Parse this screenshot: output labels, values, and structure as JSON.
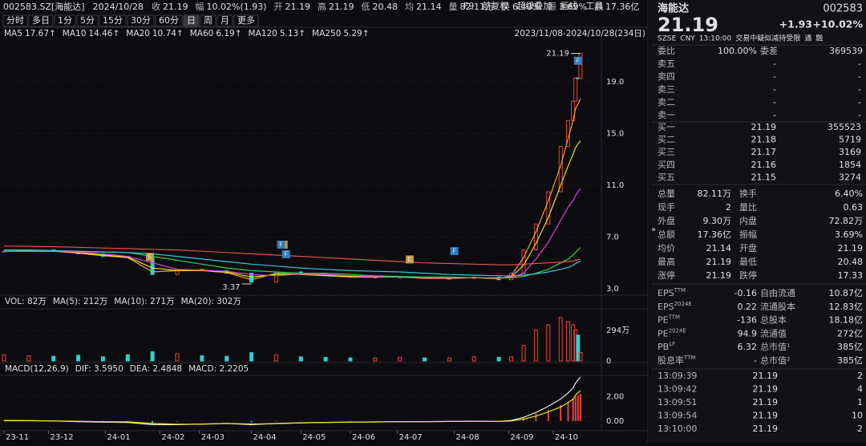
{
  "quote_bar": {
    "code": "002583.SZ[海能达]",
    "date": "2024/10/28",
    "items": [
      {
        "label": "收",
        "value": "21.19",
        "color": "#f0413a"
      },
      {
        "label": "幅",
        "value": "10.02%(1.93)",
        "color": "#f0413a"
      },
      {
        "label": "开",
        "value": "21.19",
        "color": "#f0413a"
      },
      {
        "label": "高",
        "value": "21.19",
        "color": "#f0413a"
      },
      {
        "label": "低",
        "value": "20.48",
        "color": "#f0413a"
      },
      {
        "label": "均",
        "value": "21.14",
        "color": "#f0413a"
      },
      {
        "label": "量",
        "value": "82.11万",
        "color": "#e0e0e0"
      },
      {
        "label": "换",
        "value": "6.40%",
        "color": "#e0e0e0"
      },
      {
        "label": "振",
        "value": "3.69%",
        "color": "#e0e0e0"
      },
      {
        "label": "额",
        "value": "17.36亿",
        "color": "#e0e0e0"
      }
    ]
  },
  "toolbar": {
    "periods": [
      "分时",
      "多日",
      "1分",
      "5分",
      "15分",
      "30分",
      "60分",
      "日",
      "周",
      "月",
      "更多"
    ],
    "active": "日",
    "tools": [
      "F9",
      "前复权",
      "超级叠加",
      "画线",
      "工具"
    ]
  },
  "chart_data": [
    {
      "type": "candlestick",
      "range_label": "2023/11/08-2024/10/28(234日)",
      "x": [
        0,
        10,
        20,
        30,
        40,
        50,
        60,
        70,
        80,
        90,
        100,
        110,
        120,
        130,
        140,
        150,
        160,
        170,
        180,
        190,
        200,
        205,
        210,
        215,
        220,
        225,
        228,
        230,
        231,
        232,
        233
      ],
      "close": [
        5.9,
        6.0,
        5.9,
        5.7,
        5.5,
        5.4,
        4.1,
        4.5,
        4.4,
        4.2,
        3.5,
        4.3,
        4.1,
        4.0,
        3.9,
        3.9,
        3.9,
        3.8,
        3.8,
        3.9,
        3.7,
        4.2,
        6.0,
        8.0,
        10.5,
        14.0,
        16.0,
        17.5,
        19.3,
        19.26,
        21.19
      ],
      "up_color": "#f0413a",
      "down_color": "#2fd0d0",
      "xlim": [
        0,
        234
      ],
      "xticks": [
        {
          "value": 0,
          "label": "23-11"
        },
        {
          "value": 18,
          "label": "23-12"
        },
        {
          "value": 41,
          "label": "24-01"
        },
        {
          "value": 63,
          "label": "24-02"
        },
        {
          "value": 79,
          "label": "24-03"
        },
        {
          "value": 100,
          "label": "24-04"
        },
        {
          "value": 120,
          "label": "24-05"
        },
        {
          "value": 140,
          "label": "24-06"
        },
        {
          "value": 159,
          "label": "24-07"
        },
        {
          "value": 182,
          "label": "24-08"
        },
        {
          "value": 204,
          "label": "24-09"
        },
        {
          "value": 222,
          "label": "24-10"
        }
      ],
      "ylim": [
        2.5,
        22.1
      ],
      "yticks": [
        {
          "value": 3,
          "label": "3.0"
        },
        {
          "value": 7,
          "label": "7.0"
        },
        {
          "value": 11,
          "label": "11.0"
        },
        {
          "value": 15,
          "label": "15.0"
        },
        {
          "value": 19,
          "label": "19.0"
        }
      ],
      "grid": true,
      "series": [
        {
          "name": "MA5",
          "legend_value": "17.67↑",
          "color": "#f0a030",
          "values": [
            5.9,
            5.95,
            5.9,
            5.75,
            5.55,
            5.4,
            4.3,
            4.4,
            4.4,
            4.25,
            3.7,
            4.2,
            4.1,
            4.0,
            3.9,
            3.9,
            3.9,
            3.8,
            3.8,
            3.85,
            3.75,
            4.0,
            5.4,
            7.4,
            9.8,
            12.5,
            14.6,
            16.0,
            16.9,
            17.3,
            17.67
          ]
        },
        {
          "name": "MA10",
          "legend_value": "14.46↑",
          "color": "#e8e020",
          "values": [
            5.9,
            5.9,
            5.9,
            5.8,
            5.6,
            5.45,
            4.6,
            4.4,
            4.45,
            4.3,
            3.9,
            4.1,
            4.15,
            4.05,
            3.95,
            3.9,
            3.9,
            3.85,
            3.8,
            3.85,
            3.8,
            3.9,
            4.8,
            6.5,
            8.5,
            11.0,
            12.5,
            13.4,
            13.9,
            14.2,
            14.46
          ]
        },
        {
          "name": "MA20",
          "legend_value": "10.74↑",
          "color": "#e040d0",
          "values": [
            5.9,
            5.9,
            5.9,
            5.85,
            5.7,
            5.5,
            5.0,
            4.5,
            4.45,
            4.35,
            4.1,
            4.0,
            4.15,
            4.1,
            4.0,
            3.95,
            3.9,
            3.85,
            3.85,
            3.85,
            3.8,
            3.85,
            4.2,
            5.3,
            6.6,
            8.3,
            9.3,
            9.8,
            10.2,
            10.5,
            10.74
          ]
        },
        {
          "name": "MA60",
          "legend_value": "6.19↑",
          "color": "#30d050",
          "values": [
            5.9,
            5.9,
            5.9,
            5.9,
            5.85,
            5.8,
            5.5,
            5.2,
            4.9,
            4.6,
            4.4,
            4.3,
            4.2,
            4.2,
            4.1,
            4.0,
            3.95,
            3.9,
            3.9,
            3.85,
            3.85,
            3.85,
            3.95,
            4.2,
            4.5,
            5.0,
            5.3,
            5.6,
            5.8,
            6.0,
            6.19
          ]
        },
        {
          "name": "MA120",
          "legend_value": "5.13↑",
          "color": "#40c0e0",
          "values": [
            6.0,
            6.0,
            5.95,
            5.9,
            5.85,
            5.8,
            5.7,
            5.5,
            5.3,
            5.1,
            4.9,
            4.75,
            4.6,
            4.5,
            4.4,
            4.35,
            4.3,
            4.2,
            4.1,
            4.05,
            4.0,
            4.0,
            4.05,
            4.15,
            4.3,
            4.5,
            4.65,
            4.8,
            4.95,
            5.05,
            5.13
          ]
        },
        {
          "name": "MA250",
          "legend_value": "5.29↑",
          "color": "#e05050",
          "values": [
            6.3,
            6.28,
            6.25,
            6.2,
            6.15,
            6.1,
            6.05,
            6.0,
            5.9,
            5.8,
            5.7,
            5.6,
            5.5,
            5.4,
            5.3,
            5.2,
            5.1,
            5.0,
            4.95,
            4.9,
            4.85,
            4.85,
            4.9,
            4.95,
            5.0,
            5.05,
            5.1,
            5.15,
            5.2,
            5.25,
            5.29
          ]
        }
      ],
      "annotations": [
        {
          "x": 233,
          "value": 21.19
        },
        {
          "x": 100,
          "value": 3.37
        }
      ],
      "events": [
        {
          "label": "E",
          "x": 59,
          "color": "#c89a3a"
        },
        {
          "label": "E",
          "x": 113,
          "color": "#c89a3a"
        },
        {
          "label": "F",
          "x": 114,
          "color": "#2f7fc1"
        },
        {
          "label": "F",
          "x": 112,
          "color": "#2f7fc1"
        },
        {
          "label": "E",
          "x": 164,
          "color": "#c89a3a"
        },
        {
          "label": "F",
          "x": 182,
          "color": "#2f7fc1"
        },
        {
          "label": "F",
          "x": 232,
          "color": "#2f7fc1"
        }
      ]
    },
    {
      "type": "bar",
      "legend": [
        {
          "text": "VOL: 82万",
          "color": "#e0e0e0"
        },
        {
          "text": "MA(5): 212万",
          "color": "#e0e0e0"
        },
        {
          "text": "MA(10): 271万",
          "color": "#e8e020"
        },
        {
          "text": "MA(20): 302万",
          "color": "#e040d0"
        }
      ],
      "x": [
        0,
        10,
        20,
        30,
        40,
        50,
        60,
        70,
        80,
        90,
        100,
        110,
        120,
        130,
        140,
        150,
        160,
        170,
        180,
        190,
        200,
        205,
        210,
        215,
        220,
        225,
        228,
        230,
        231,
        232,
        233
      ],
      "values": [
        60,
        50,
        45,
        55,
        40,
        60,
        90,
        70,
        50,
        45,
        80,
        60,
        40,
        35,
        30,
        30,
        35,
        30,
        30,
        40,
        35,
        40,
        150,
        300,
        350,
        420,
        380,
        350,
        300,
        250,
        82
      ],
      "xlim": [
        0,
        234
      ],
      "ylim": [
        0,
        480
      ],
      "yticks": [
        0,
        {
          "value": 294,
          "label": "294万"
        }
      ]
    },
    {
      "type": "bar",
      "legend": [
        {
          "text": "MACD(12,26,9)",
          "color": "#e0e0e0"
        },
        {
          "text": "DIF: 3.5950",
          "color": "#e0e0e0"
        },
        {
          "text": "DEA: 2.4848",
          "color": "#e8e020"
        },
        {
          "text": "MACD: 2.2205",
          "color": "#e040d0"
        }
      ],
      "x": [
        0,
        10,
        20,
        30,
        40,
        50,
        60,
        70,
        80,
        90,
        100,
        110,
        120,
        130,
        140,
        150,
        160,
        170,
        180,
        190,
        200,
        205,
        210,
        215,
        220,
        225,
        228,
        230,
        231,
        232,
        233
      ],
      "values": [
        0.05,
        0.02,
        -0.02,
        -0.05,
        -0.08,
        -0.1,
        -0.2,
        -0.05,
        0.02,
        0,
        -0.1,
        0.05,
        0.02,
        0,
        -0.02,
        0,
        0,
        -0.01,
        0,
        0.02,
        0,
        0.08,
        0.3,
        0.6,
        0.9,
        1.3,
        1.6,
        1.8,
        2.0,
        2.1,
        2.2205
      ],
      "series": [
        {
          "color": "#e8e8e8",
          "values": [
            0.05,
            0.03,
            0,
            -0.05,
            -0.1,
            -0.12,
            -0.3,
            -0.3,
            -0.25,
            -0.2,
            -0.3,
            -0.2,
            -0.15,
            -0.12,
            -0.1,
            -0.08,
            -0.06,
            -0.05,
            -0.04,
            -0.02,
            -0.03,
            0.05,
            0.3,
            0.7,
            1.2,
            1.8,
            2.3,
            2.7,
            3.1,
            3.35,
            3.595
          ]
        },
        {
          "color": "#e8e020",
          "values": [
            0.02,
            0.02,
            0.01,
            -0.02,
            -0.06,
            -0.07,
            -0.2,
            -0.27,
            -0.26,
            -0.2,
            -0.25,
            -0.22,
            -0.16,
            -0.12,
            -0.09,
            -0.08,
            -0.06,
            -0.05,
            -0.04,
            -0.03,
            -0.03,
            0.0,
            0.15,
            0.4,
            0.75,
            1.15,
            1.5,
            1.8,
            2.1,
            2.3,
            2.4848
          ]
        }
      ],
      "xlim": [
        0,
        234
      ],
      "ylim": [
        -0.8,
        3.6
      ],
      "yticks": [
        {
          "value": 0,
          "label": "0.00"
        },
        {
          "value": 2,
          "label": "2.00"
        }
      ]
    }
  ],
  "quote_panel": {
    "name": "海能达",
    "code": "002583",
    "price": "21.19",
    "change": "+1.93",
    "change_pct": "+10.02%",
    "info": [
      "SZSE",
      "CNY",
      "13:10:00",
      "交易中疑似减持受限",
      "通",
      "融"
    ],
    "order_ratio": {
      "label": "委比",
      "value": "100.00%",
      "label2": "委差",
      "value2": "369539"
    },
    "asks": [
      {
        "label": "卖五",
        "price": "-",
        "volume": "-"
      },
      {
        "label": "卖四",
        "price": "-",
        "volume": "-"
      },
      {
        "label": "卖三",
        "price": "-",
        "volume": "-"
      },
      {
        "label": "卖二",
        "price": "-",
        "volume": "-"
      },
      {
        "label": "卖一",
        "price": "-",
        "volume": "-"
      }
    ],
    "bids": [
      {
        "label": "买一",
        "price": "21.19",
        "volume": "355523"
      },
      {
        "label": "买二",
        "price": "21.18",
        "volume": "5719"
      },
      {
        "label": "买三",
        "price": "21.17",
        "volume": "3169"
      },
      {
        "label": "买四",
        "price": "21.16",
        "volume": "1854"
      },
      {
        "label": "买五",
        "price": "21.15",
        "volume": "3274"
      }
    ],
    "stats": [
      [
        {
          "label": "总量",
          "value": "82.11万"
        },
        {
          "label": "换手",
          "value": "6.40%"
        }
      ],
      [
        {
          "label": "现手",
          "value": "2"
        },
        {
          "label": "量比",
          "value": "0.63"
        }
      ],
      [
        {
          "label": "外盘",
          "value": "9.30万",
          "color": "#f0413a"
        },
        {
          "label": "内盘",
          "value": "72.82万",
          "color": "#2ec24f"
        }
      ],
      [
        {
          "label": "总额",
          "value": "17.36亿"
        },
        {
          "label": "振幅",
          "value": "3.69%"
        }
      ],
      [
        {
          "label": "均价",
          "value": "21.14",
          "color": "#f0413a"
        },
        {
          "label": "开盘",
          "value": "21.19",
          "color": "#f0413a"
        }
      ],
      [
        {
          "label": "最高",
          "value": "21.19",
          "color": "#f0413a"
        },
        {
          "label": "最低",
          "value": "20.48",
          "color": "#f0413a"
        }
      ],
      [
        {
          "label": "涨停",
          "value": "21.19",
          "color": "#f0413a"
        },
        {
          "label": "跌停",
          "value": "17.33",
          "color": "#2ec24f"
        }
      ]
    ],
    "financials": [
      {
        "label": "EPS",
        "sup": "TTM",
        "value": "-0.16",
        "label2": "自由流通",
        "value2": "10.87亿"
      },
      {
        "label": "EPS",
        "sup": "2024E",
        "value": "0.22",
        "label2": "流通股本",
        "value2": "12.83亿"
      },
      {
        "label": "PE",
        "sup": "TTM",
        "value": "-136",
        "label2": "总股本",
        "value2": "18.18亿"
      },
      {
        "label": "PE",
        "sup": "2024E",
        "value": "94.9",
        "label2": "流通值",
        "value2": "272亿"
      },
      {
        "label": "PB",
        "sup": "LF",
        "value": "6.32",
        "label2": "总市值¹",
        "value2": "385亿"
      },
      {
        "label": "股息率",
        "sup": "TTM",
        "value": "-",
        "label2": "总市值²",
        "value2": "385亿"
      }
    ],
    "trades": [
      {
        "time": "13:09:39",
        "price": "21.19",
        "volume": "2"
      },
      {
        "time": "13:09:42",
        "price": "21.19",
        "volume": "4"
      },
      {
        "time": "13:09:51",
        "price": "21.19",
        "volume": "1"
      },
      {
        "time": "13:09:54",
        "price": "21.19",
        "volume": "10"
      },
      {
        "time": "13:10:00",
        "price": "21.19",
        "volume": "2"
      }
    ]
  }
}
